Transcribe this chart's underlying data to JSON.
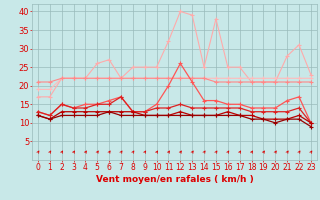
{
  "x": [
    0,
    1,
    2,
    3,
    4,
    5,
    6,
    7,
    8,
    9,
    10,
    11,
    12,
    13,
    14,
    15,
    16,
    17,
    18,
    19,
    20,
    21,
    22,
    23
  ],
  "series": [
    {
      "color": "#ffaaaa",
      "lw": 0.8,
      "marker": "+",
      "ms": 3,
      "values": [
        17,
        17,
        22,
        22,
        22,
        26,
        27,
        22,
        25,
        25,
        25,
        32,
        40,
        39,
        25,
        38,
        25,
        25,
        21,
        21,
        21,
        28,
        31,
        23
      ]
    },
    {
      "color": "#ffbbbb",
      "lw": 0.8,
      "marker": "+",
      "ms": 3,
      "values": [
        19,
        19,
        22,
        22,
        22,
        22,
        22,
        22,
        22,
        22,
        22,
        22,
        22,
        22,
        22,
        22,
        22,
        22,
        22,
        22,
        22,
        22,
        22,
        22
      ]
    },
    {
      "color": "#ff8888",
      "lw": 0.8,
      "marker": "+",
      "ms": 3,
      "values": [
        21,
        21,
        22,
        22,
        22,
        22,
        22,
        22,
        22,
        22,
        22,
        22,
        22,
        22,
        22,
        21,
        21,
        21,
        21,
        21,
        21,
        21,
        21,
        21
      ]
    },
    {
      "color": "#ff5555",
      "lw": 0.9,
      "marker": "+",
      "ms": 3,
      "values": [
        13,
        12,
        15,
        14,
        15,
        15,
        16,
        17,
        13,
        13,
        15,
        20,
        26,
        21,
        16,
        16,
        15,
        15,
        14,
        14,
        14,
        16,
        17,
        10
      ]
    },
    {
      "color": "#dd2222",
      "lw": 0.9,
      "marker": "+",
      "ms": 3,
      "values": [
        13,
        12,
        15,
        14,
        14,
        15,
        15,
        17,
        13,
        13,
        14,
        14,
        15,
        14,
        14,
        14,
        14,
        14,
        13,
        13,
        13,
        13,
        14,
        10
      ]
    },
    {
      "color": "#bb0000",
      "lw": 0.9,
      "marker": "+",
      "ms": 3,
      "values": [
        12,
        11,
        13,
        13,
        13,
        13,
        13,
        13,
        13,
        12,
        12,
        12,
        13,
        12,
        12,
        12,
        13,
        12,
        12,
        11,
        11,
        11,
        12,
        10
      ]
    },
    {
      "color": "#990000",
      "lw": 0.9,
      "marker": "+",
      "ms": 3,
      "values": [
        12,
        11,
        12,
        12,
        12,
        12,
        13,
        12,
        12,
        12,
        12,
        12,
        12,
        12,
        12,
        12,
        12,
        12,
        11,
        11,
        10,
        11,
        11,
        9
      ]
    }
  ],
  "xlabel": "Vent moyen/en rafales ( km/h )",
  "ylim": [
    0,
    42
  ],
  "yticks": [
    5,
    10,
    15,
    20,
    25,
    30,
    35,
    40
  ],
  "xlim": [
    -0.5,
    23.5
  ],
  "bg_color": "#c8e8e8",
  "grid_color": "#99bbbb",
  "tick_color": "#dd0000",
  "label_color": "#dd0000",
  "xlabel_fontsize": 6.5,
  "ytick_fontsize": 6,
  "xtick_fontsize": 5.5
}
